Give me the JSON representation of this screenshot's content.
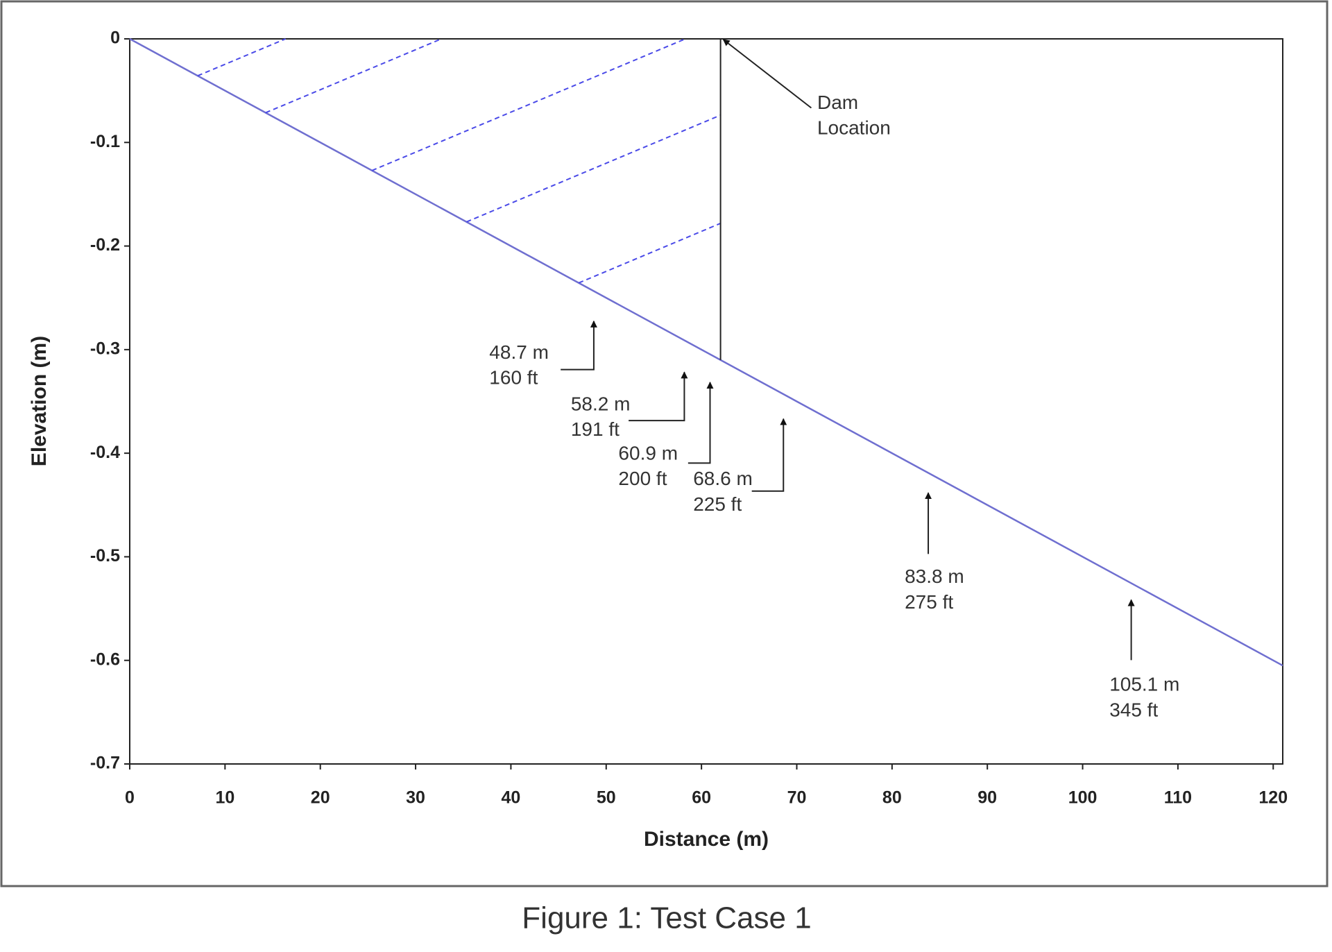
{
  "chart_data": {
    "type": "line",
    "caption": "Figure 1: Test Case 1",
    "x_label": "Distance (m)",
    "y_label": "Elevation (m)",
    "x": [
      0,
      121
    ],
    "values": [
      0,
      -0.605
    ],
    "color": "#6f6fd0",
    "water_color": "#4a4ae8",
    "xlim": [
      0,
      121
    ],
    "ylim": [
      -0.7,
      0
    ],
    "xticks": [
      0,
      10,
      20,
      30,
      40,
      50,
      60,
      70,
      80,
      90,
      100,
      110,
      120
    ],
    "yticks": [
      0,
      -0.1,
      -0.2,
      -0.3,
      -0.4,
      -0.5,
      -0.6,
      -0.7
    ],
    "dam": {
      "x": 62,
      "label": [
        "Dam",
        "Location"
      ]
    },
    "gauges": [
      {
        "x": 48.7,
        "labels": [
          "48.7 m",
          "160 ft"
        ]
      },
      {
        "x": 58.2,
        "labels": [
          "58.2 m",
          "191 ft"
        ]
      },
      {
        "x": 60.9,
        "labels": [
          "60.9 m",
          "200 ft"
        ]
      },
      {
        "x": 68.6,
        "labels": [
          "68.6 m",
          "225 ft"
        ]
      },
      {
        "x": 83.8,
        "labels": [
          "83.8 m",
          "275 ft"
        ]
      },
      {
        "x": 105.1,
        "labels": [
          "105.1 m",
          "345 ft"
        ]
      }
    ]
  }
}
